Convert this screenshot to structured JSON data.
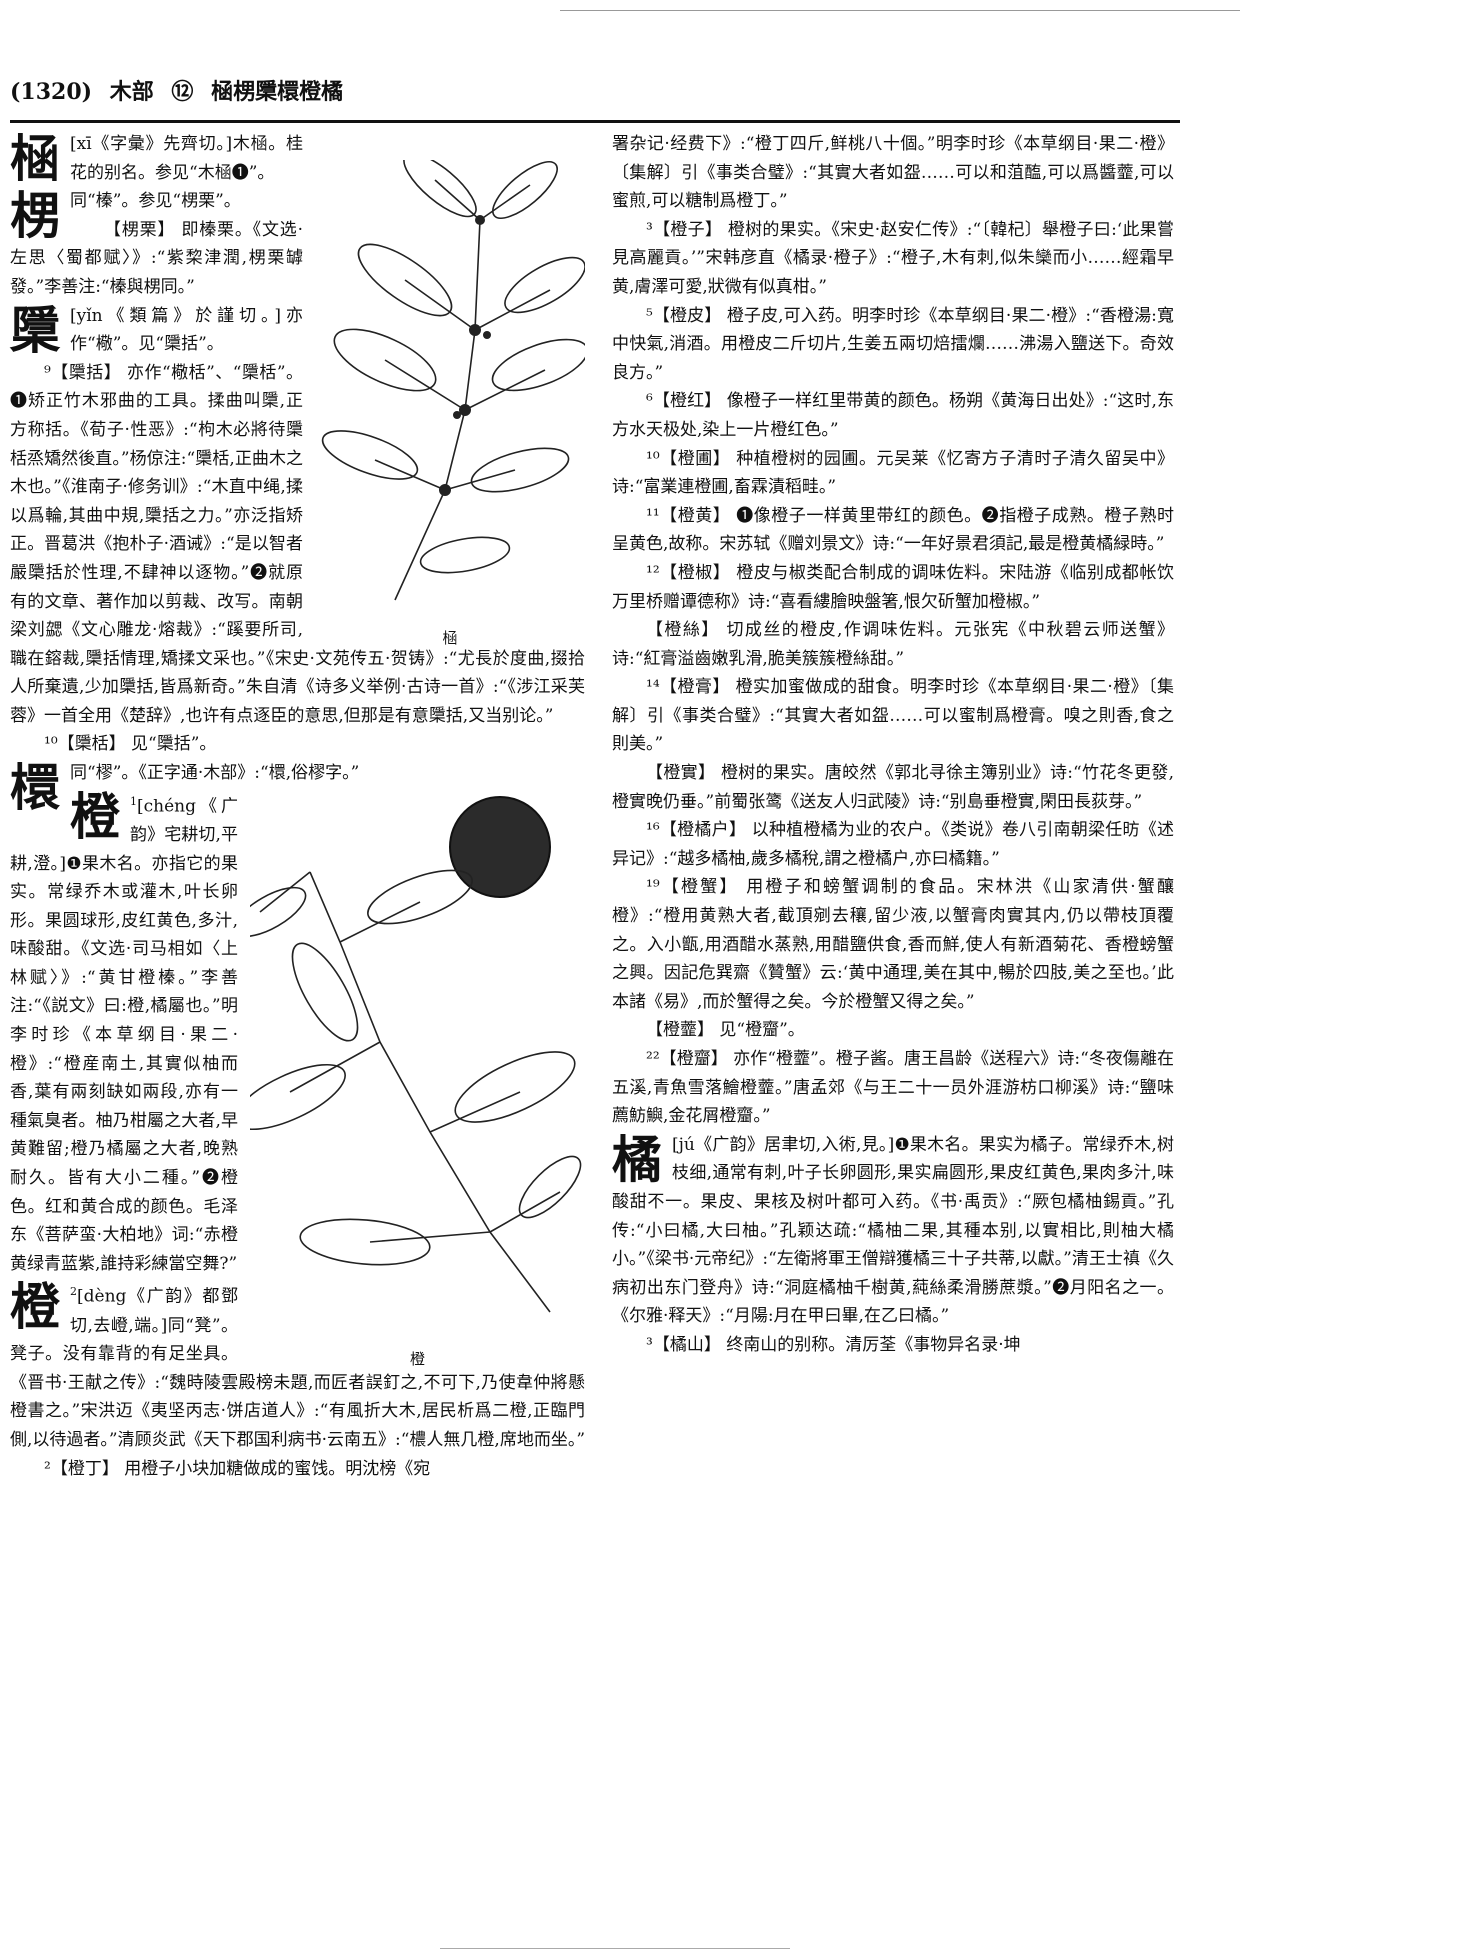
{
  "header": {
    "page_number": "(1320)",
    "section": "木部",
    "stroke_count": "⑫",
    "headwords": "㮀㭷檃檈橙橘"
  },
  "left": {
    "p1_char": "㮀",
    "p1_text": "[xī《字彙》先齊切。]木㮀。桂花的别名。参见“木㮀❶”。",
    "p2_char": "㭷",
    "p2_text": "同“榛”。参见“㭷栗”。",
    "p3": "【㭷栗】 即榛栗。《文选·左思〈蜀都赋〉》:“紫棃津潤,㭷栗罅發。”李善注:“榛與㭷同。”",
    "p4_char": "檃",
    "p4_text": "[yǐn《類篇》於謹切。]亦作“㯳”。见“檃括”。",
    "p5": "⁹【檃括】 亦作“㯳栝”、“檃栝”。❶矫正竹木邪曲的工具。揉曲叫檃,正方称括。《荀子·性恶》:“枸木必將待檃栝烝矯然後直。”杨倞注:“檃栝,正曲木之木也。”《淮南子·修务训》:“木直中绳,揉以爲輪,其曲中規,檃括之力。”亦泛指矫正。晋葛洪《抱朴子·酒诫》:“是以智者嚴檃括於性理,不肆神以逐物。”❷就原有的文章、著作加以剪裁、改写。南朝梁刘勰《文心雕龙·熔裁》:“蹊要所司,職在鎔裁,檃括情理,矯揉文采也。”《宋史·文苑传五·贺铸》:“尤長於度曲,掇拾人所棄遺,少加檃括,皆爲新奇。”朱自清《诗多义举例·古诗一首》:“《涉江采芙蓉》一首全用《楚辞》,也许有点逐臣的意思,但那是有意檃括,又当别论。”",
    "p6": "¹⁰【檃栝】 见“檃括”。",
    "p7_char": "檈",
    "p7_text": "同“樛”。《正字通·木部》:“檈,俗樛字。”",
    "p8_char": "橙",
    "p8_sup": "1",
    "p8_text": "[chéng《广韵》宅耕切,平耕,澄。]❶果木名。亦指它的果实。常绿乔木或灌木,叶长卵形。果圆球形,皮红黄色,多汁,味酸甜。《文选·司马相如〈上林赋〉》:“黄甘橙榛。”李善注:“《説文》曰:橙,橘屬也。”明李时珍《本草纲目·果二·橙》:“橙産南土,其實似柚而香,葉有兩刻缺如兩段,亦有一種氣臭者。柚乃柑屬之大者,早黄難留;橙乃橘屬之大者,晚熟耐久。皆有大小二種。”❷橙色。红和黄合成的颜色。毛泽东《菩萨蛮·大柏地》词:“赤橙黄绿青蓝紫,誰持彩練當空舞?”",
    "p9_char": "橙",
    "p9_sup": "2",
    "p9_text": "[dèng《广韵》都鄧切,去嶝,端。]同“凳”。凳子。没有靠背的有足坐具。《晋书·王献之传》:“魏時陵雲殿榜未題,而匠者誤釘之,不可下,乃使韋仲將懸橙書之。”宋洪迈《夷坚丙志·饼店道人》:“有風折大木,居民析爲二橙,正臨門側,以待過者。”清顾炎武《天下郡国利病书·云南五》:“檂人無几橙,席地而坐。”",
    "p10": "²【橙丁】 用橙子小块加糖做成的蜜饯。明沈榜《宛",
    "fig1_caption": "㮀",
    "fig2_caption": "橙"
  },
  "right": {
    "r1": "署杂记·经费下》:“橙丁四斤,鲜桃八十個。”明李时珍《本草纲目·果二·橙》〔集解〕引《事类合璧》:“其實大者如盌……可以和菹醢,可以爲醬虀,可以蜜煎,可以糖制爲橙丁。”",
    "r2": "³【橙子】 橙树的果实。《宋史·赵安仁传》:“〔韓杞〕舉橙子曰:‘此果嘗見高麗貢。’”宋韩彦直《橘录·橙子》:“橙子,木有刺,似朱欒而小……經霜早黄,膚澤可愛,狀微有似真柑。”",
    "r3": "⁵【橙皮】 橙子皮,可入药。明李时珍《本草纲目·果二·橙》:“香橙湯:寬中快氣,消酒。用橙皮二斤切片,生姜五兩切焙擂爛……沸湯入鹽送下。奇效良方。”",
    "r4": "⁶【橙红】 像橙子一样红里带黄的颜色。杨朔《黄海日出处》:“这时,东方水天极处,染上一片橙红色。”",
    "r5": "¹⁰【橙圃】 种植橙树的园圃。元吴莱《忆寄方子清时子清久留吴中》诗:“富業連橙圃,畜霖漬稻畦。”",
    "r6": "¹¹【橙黄】 ❶像橙子一样黄里带红的颜色。❷指橙子成熟。橙子熟时呈黄色,故称。宋苏轼《赠刘景文》诗:“一年好景君須記,最是橙黄橘緑時。”",
    "r7": "¹²【橙椒】 橙皮与椒类配合制成的调味佐料。宋陆游《临别成都帐饮万里桥赠谭德称》诗:“喜看縷膾映盤箸,恨欠斫蟹加橙椒。”",
    "r8": "【橙絲】 切成丝的橙皮,作调味佐料。元张宪《中秋碧云师送蟹》诗:“紅膏溢齒嫩乳滑,脆美簇簇橙絲甜。”",
    "r9": "¹⁴【橙膏】 橙实加蜜做成的甜食。明李时珍《本草纲目·果二·橙》〔集解〕引《事类合璧》:“其實大者如盌……可以蜜制爲橙膏。嗅之則香,食之則美。”",
    "r10": "【橙實】 橙树的果实。唐皎然《郭北寻徐主簿别业》诗:“竹花冬更發,橙實晚仍垂。”前蜀张𬸦《送友人归武陵》诗:“别島垂橙實,閑田長荻芽。”",
    "r11": "¹⁶【橙橘户】 以种植橙橘为业的农户。《类说》卷八引南朝梁任昉《述异记》:“越多橘柚,歲多橘稅,謂之橙橘户,亦曰橘籍。”",
    "r12": "¹⁹【橙蟹】 用橙子和螃蟹调制的食品。宋林洪《山家清供·蟹釀橙》:“橙用黄熟大者,截頂剜去穰,留少液,以蟹膏肉實其内,仍以帶枝頂覆之。入小甑,用酒醋水蒸熟,用醋鹽供食,香而鮮,使人有新酒菊花、香橙螃蟹之興。因記危巽齋《贊蟹》云:‘黄中通理,美在其中,暢於四肢,美之至也。’此本諸《易》,而於蟹得之矣。今於橙蟹又得之矣。”",
    "r13": "【橙虀】 见“橙齏”。",
    "r14": "²²【橙齏】 亦作“橙虀”。橙子酱。唐王昌龄《送程六》诗:“冬夜傷離在五溪,青魚雪落鱠橙虀。”唐孟郊《与王二十一员外涯游枋口柳溪》诗:“鹽味薦魴鱮,金花屑橙齏。”",
    "r15_char": "橘",
    "r15_text": "[jú《广韵》居聿切,入術,見。]❶果木名。果实为橘子。常绿乔木,树枝细,通常有刺,叶子长卵圆形,果实扁圆形,果皮红黄色,果肉多汁,味酸甜不一。果皮、果核及树叶都可入药。《书·禹贡》:“厥包橘柚錫貢。”孔传:“小曰橘,大曰柚。”孔颖达疏:“橘柚二果,其種本别,以實相比,則柚大橘小。”《梁书·元帝纪》:“左衛將軍王僧辯獲橘三十子共蒂,以獻。”清王士禛《久病初出东门登舟》诗:“洞庭橘柚千樹黄,蒓絲柔滑勝蔗漿。”❷月阳名之一。《尔雅·释天》:“月陽:月在甲曰畢,在乙曰橘。”",
    "r16": "³【橘山】 终南山的别称。清厉荃《事物异名录·坤"
  }
}
